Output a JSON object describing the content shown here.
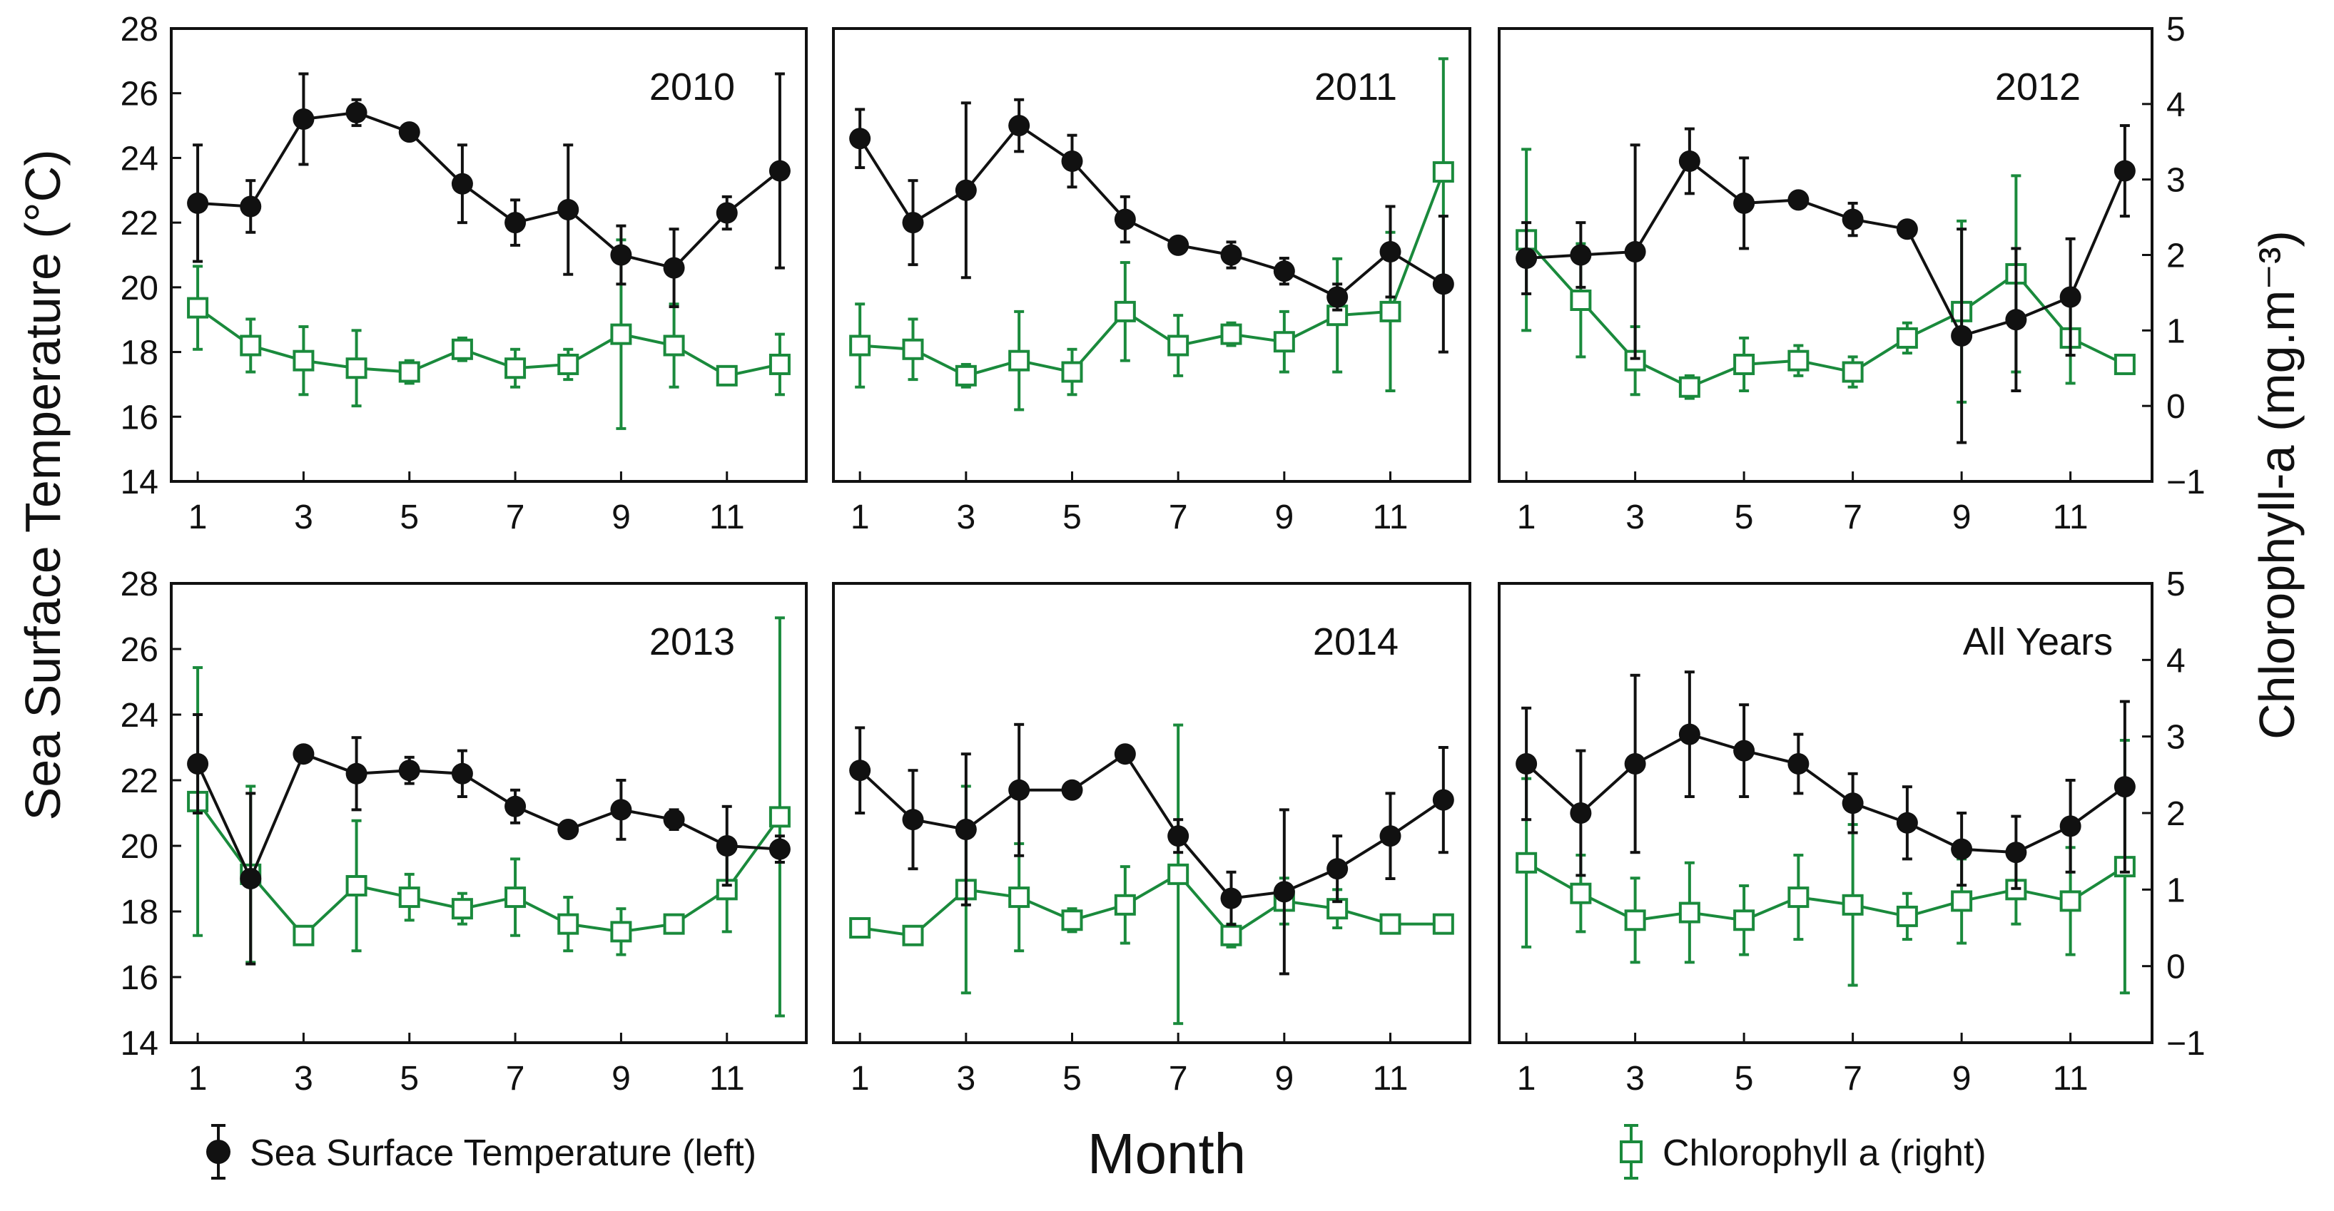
{
  "chart_data": {
    "type": "line",
    "ylabel_left": "Sea Surface Temperature (°C)",
    "ylabel_right": "Chlorophyll-a (mg.m⁻³)",
    "xlabel": "Month",
    "sst_ylim": [
      14,
      28
    ],
    "sst_yticks": [
      14,
      16,
      18,
      20,
      22,
      24,
      26,
      28
    ],
    "chl_ylim": [
      -1,
      5
    ],
    "chl_yticks": [
      -1,
      0,
      1,
      2,
      3,
      4,
      5
    ],
    "xlim": [
      0.5,
      12.5
    ],
    "xticks": [
      1,
      3,
      5,
      7,
      9,
      11
    ],
    "colors": {
      "sst": "#111111",
      "chl": "#1a8a3c"
    },
    "legend": {
      "sst_label": "Sea Surface Temperature (left)",
      "chl_label": "Chlorophyll a (right)"
    },
    "panels": [
      {
        "title": "2010",
        "sst": [
          22.6,
          22.5,
          25.2,
          25.4,
          24.8,
          23.2,
          22.0,
          22.4,
          21.0,
          20.6,
          22.3,
          23.6
        ],
        "sst_err": [
          1.8,
          0.8,
          1.4,
          0.4,
          0.2,
          1.2,
          0.7,
          2.0,
          0.9,
          1.2,
          0.5,
          3.0
        ],
        "chl": [
          1.3,
          0.8,
          0.6,
          0.5,
          0.45,
          0.75,
          0.5,
          0.55,
          0.95,
          0.8,
          0.4,
          0.55
        ],
        "chl_err": [
          0.55,
          0.35,
          0.45,
          0.5,
          0.15,
          0.15,
          0.25,
          0.2,
          1.25,
          0.55,
          0.1,
          0.4
        ]
      },
      {
        "title": "2011",
        "sst": [
          24.6,
          22.0,
          23.0,
          25.0,
          23.9,
          22.1,
          21.3,
          21.0,
          20.5,
          19.7,
          21.1,
          20.1
        ],
        "sst_err": [
          0.9,
          1.3,
          2.7,
          0.8,
          0.8,
          0.7,
          0.2,
          0.4,
          0.4,
          0.4,
          1.4,
          2.1
        ],
        "chl": [
          0.8,
          0.75,
          0.4,
          0.6,
          0.45,
          1.25,
          0.8,
          0.95,
          0.85,
          1.2,
          1.25,
          3.1
        ],
        "chl_err": [
          0.55,
          0.4,
          0.15,
          0.65,
          0.3,
          0.65,
          0.4,
          0.15,
          0.4,
          0.75,
          1.05,
          1.5
        ]
      },
      {
        "title": "2012",
        "sst": [
          20.9,
          21.0,
          21.1,
          23.9,
          22.6,
          22.7,
          22.1,
          21.8,
          18.5,
          19.0,
          19.7,
          23.6
        ],
        "sst_err": [
          1.1,
          1.0,
          3.3,
          1.0,
          1.4,
          0.2,
          0.5,
          0.2,
          3.3,
          2.2,
          1.8,
          1.4
        ],
        "chl": [
          2.2,
          1.4,
          0.6,
          0.25,
          0.55,
          0.6,
          0.45,
          0.9,
          1.25,
          1.75,
          0.9,
          0.55
        ],
        "chl_err": [
          1.2,
          0.75,
          0.45,
          0.15,
          0.35,
          0.2,
          0.2,
          0.2,
          1.2,
          1.3,
          0.6,
          0.1
        ]
      },
      {
        "title": "2013",
        "sst": [
          22.5,
          19.0,
          22.8,
          22.2,
          22.3,
          22.2,
          21.2,
          20.5,
          21.1,
          20.8,
          20.0,
          19.9
        ],
        "sst_err": [
          1.5,
          2.6,
          0.2,
          1.1,
          0.4,
          0.7,
          0.5,
          0.2,
          0.9,
          0.3,
          1.2,
          0.4
        ],
        "chl": [
          2.15,
          1.2,
          0.4,
          1.05,
          0.9,
          0.75,
          0.9,
          0.55,
          0.45,
          0.55,
          1.0,
          1.95
        ],
        "chl_err": [
          1.75,
          1.15,
          0.1,
          0.85,
          0.3,
          0.2,
          0.5,
          0.35,
          0.3,
          0.1,
          0.55,
          2.6
        ]
      },
      {
        "title": "2014",
        "sst": [
          22.3,
          20.8,
          20.5,
          21.7,
          21.7,
          22.8,
          20.3,
          18.4,
          18.6,
          19.3,
          20.3,
          21.4
        ],
        "sst_err": [
          1.3,
          1.5,
          2.3,
          2.0,
          0.1,
          0.1,
          0.5,
          0.8,
          2.5,
          1.0,
          1.3,
          1.6
        ],
        "chl": [
          0.5,
          0.4,
          1.0,
          0.9,
          0.6,
          0.8,
          1.2,
          0.4,
          0.85,
          0.75,
          0.55,
          0.55
        ],
        "chl_err": [
          0.1,
          0.1,
          1.35,
          0.7,
          0.15,
          0.5,
          1.95,
          0.15,
          0.3,
          0.25,
          0.1,
          0.1
        ]
      },
      {
        "title": "All Years",
        "sst": [
          22.5,
          21.0,
          22.5,
          23.4,
          22.9,
          22.5,
          21.3,
          20.7,
          19.9,
          19.8,
          20.6,
          21.8
        ],
        "sst_err": [
          1.7,
          1.9,
          2.7,
          1.9,
          1.4,
          0.9,
          0.9,
          1.1,
          1.1,
          1.1,
          1.4,
          2.6
        ],
        "chl": [
          1.35,
          0.95,
          0.6,
          0.7,
          0.6,
          0.9,
          0.8,
          0.65,
          0.85,
          1.0,
          0.85,
          1.3
        ],
        "chl_err": [
          1.1,
          0.5,
          0.55,
          0.65,
          0.45,
          0.55,
          1.05,
          0.3,
          0.55,
          0.45,
          0.7,
          1.65
        ]
      }
    ]
  }
}
